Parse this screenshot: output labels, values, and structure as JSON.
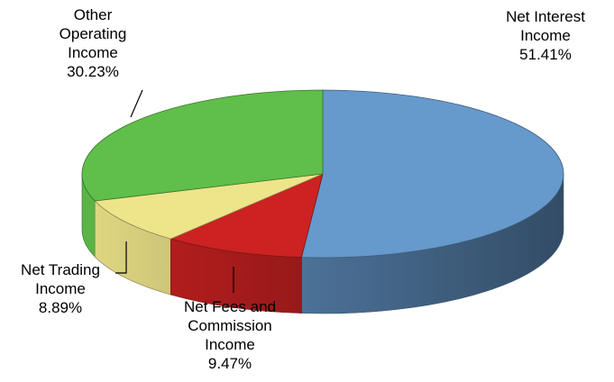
{
  "chart_data": {
    "type": "pie",
    "style": "3d",
    "title": "",
    "slices": [
      {
        "label_lines": [
          "Net Interest",
          "Income",
          "51.41%"
        ],
        "name": "Net Interest Income",
        "value": 51.41,
        "color": "#6699CC"
      },
      {
        "label_lines": [
          "Net Fees and",
          "Commission",
          "Income",
          "9.47%"
        ],
        "name": "Net Fees and Commission Income",
        "value": 9.47,
        "color": "#CC2222"
      },
      {
        "label_lines": [
          "Net Trading",
          "Income",
          "8.89%"
        ],
        "name": "Net Trading Income",
        "value": 8.89,
        "color": "#EEE48A"
      },
      {
        "label_lines": [
          "Other",
          "Operating",
          "Income",
          "30.23%"
        ],
        "name": "Other Operating Income",
        "value": 30.23,
        "color": "#5FBF4A"
      }
    ]
  }
}
